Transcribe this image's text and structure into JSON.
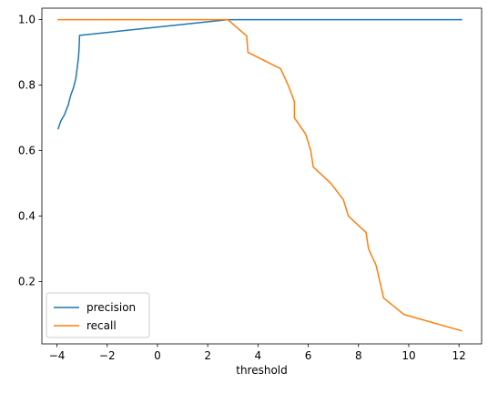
{
  "chart_data": {
    "type": "line",
    "title": "",
    "xlabel": "threshold",
    "ylabel": "",
    "xlim": [
      -4.6,
      12.9
    ],
    "ylim": [
      0.01,
      1.035
    ],
    "xticks": [
      -4,
      -2,
      0,
      2,
      4,
      6,
      8,
      10,
      12
    ],
    "xtick_labels": [
      "−4",
      "−2",
      "0",
      "2",
      "4",
      "6",
      "8",
      "10",
      "12"
    ],
    "yticks": [
      0.2,
      0.4,
      0.6,
      0.8,
      1.0
    ],
    "ytick_labels": [
      "0.2",
      "0.4",
      "0.6",
      "0.8",
      "1.0"
    ],
    "grid": false,
    "legend_position": "lower-left",
    "series": [
      {
        "name": "precision",
        "color": "#1f77b4",
        "points": [
          [
            -3.95,
            0.667
          ],
          [
            -3.85,
            0.69
          ],
          [
            -3.7,
            0.71
          ],
          [
            -3.55,
            0.74
          ],
          [
            -3.45,
            0.77
          ],
          [
            -3.35,
            0.79
          ],
          [
            -3.25,
            0.82
          ],
          [
            -3.2,
            0.85
          ],
          [
            -3.15,
            0.88
          ],
          [
            -3.12,
            0.91
          ],
          [
            -3.1,
            0.952
          ],
          [
            2.8,
            1.0
          ],
          [
            12.1,
            1.0
          ]
        ]
      },
      {
        "name": "recall",
        "color": "#ff7f0e",
        "points": [
          [
            -3.95,
            1.0
          ],
          [
            2.8,
            1.0
          ],
          [
            3.55,
            0.95
          ],
          [
            3.6,
            0.9
          ],
          [
            4.9,
            0.85
          ],
          [
            5.2,
            0.8
          ],
          [
            5.45,
            0.75
          ],
          [
            5.45,
            0.7
          ],
          [
            5.9,
            0.65
          ],
          [
            6.1,
            0.6
          ],
          [
            6.2,
            0.55
          ],
          [
            6.9,
            0.5
          ],
          [
            7.4,
            0.45
          ],
          [
            7.6,
            0.4
          ],
          [
            8.3,
            0.35
          ],
          [
            8.4,
            0.3
          ],
          [
            8.7,
            0.25
          ],
          [
            8.85,
            0.2
          ],
          [
            9.0,
            0.15
          ],
          [
            9.8,
            0.1
          ],
          [
            12.1,
            0.05
          ]
        ]
      }
    ]
  }
}
